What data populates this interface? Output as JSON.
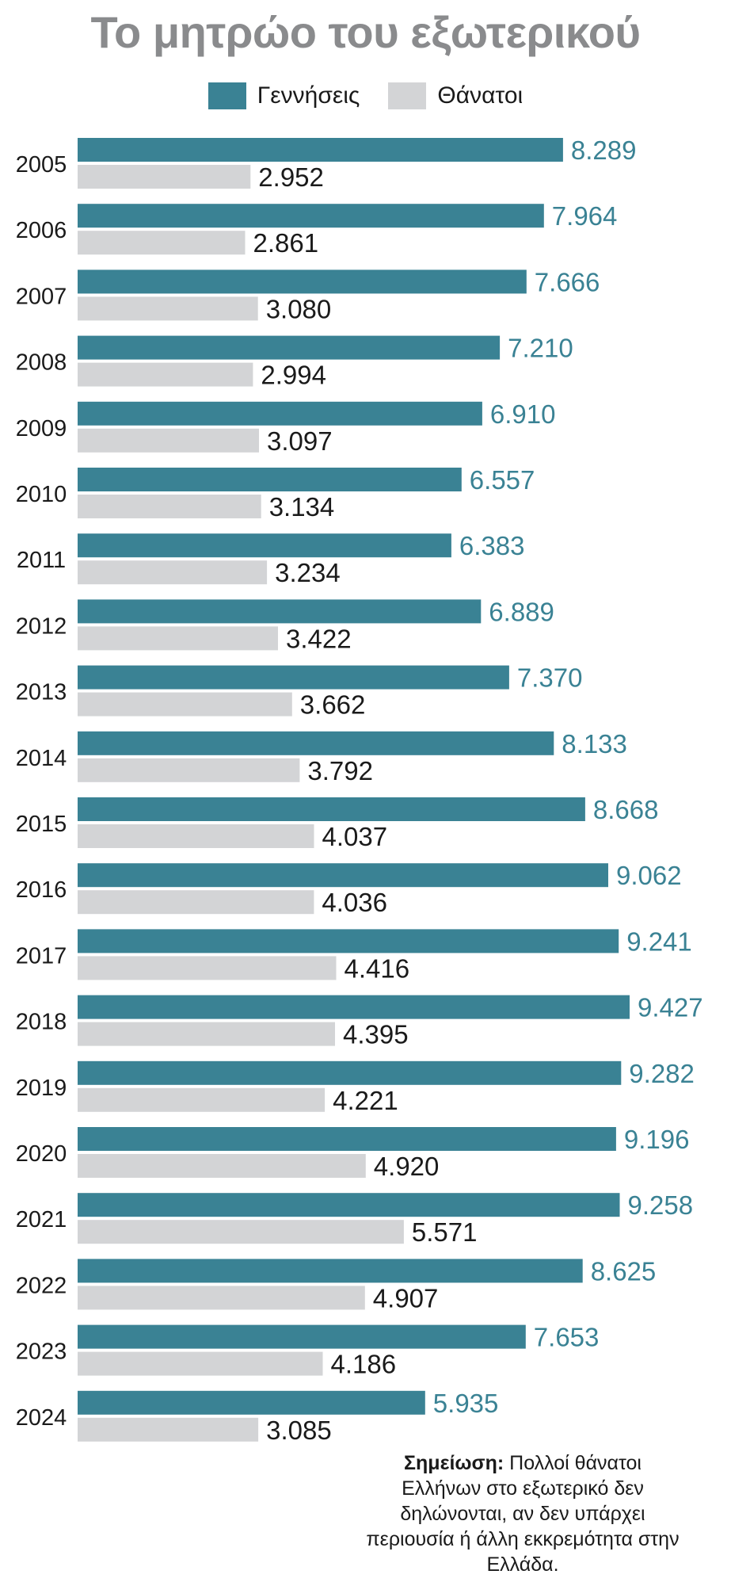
{
  "colors": {
    "births": "#3a8294",
    "deaths": "#d3d4d6",
    "title": "#8a8b8d",
    "text": "#1a1a1a"
  },
  "chart_data": {
    "type": "bar",
    "orientation": "horizontal",
    "title": "Το μητρώο του εξωτερικού",
    "legend": [
      "Γεννήσεις",
      "Θάνατοι"
    ],
    "legend_position": "top-center",
    "categories": [
      "2005",
      "2006",
      "2007",
      "2008",
      "2009",
      "2010",
      "2011",
      "2012",
      "2013",
      "2014",
      "2015",
      "2016",
      "2017",
      "2018",
      "2019",
      "2020",
      "2021",
      "2022",
      "2023",
      "2024"
    ],
    "series": [
      {
        "name": "Γεννήσεις",
        "values": [
          8289,
          7964,
          7666,
          7210,
          6910,
          6557,
          6383,
          6889,
          7370,
          8133,
          8668,
          9062,
          9241,
          9427,
          9282,
          9196,
          9258,
          8625,
          7653,
          5935
        ],
        "labels": [
          "8.289",
          "7.964",
          "7.666",
          "7.210",
          "6.910",
          "6.557",
          "6.383",
          "6.889",
          "7.370",
          "8.133",
          "8.668",
          "9.062",
          "9.241",
          "9.427",
          "9.282",
          "9.196",
          "9.258",
          "8.625",
          "7.653",
          "5.935"
        ]
      },
      {
        "name": "Θάνατοι",
        "values": [
          2952,
          2861,
          3080,
          2994,
          3097,
          3134,
          3234,
          3422,
          3662,
          3792,
          4037,
          4036,
          4416,
          4395,
          4221,
          4920,
          5571,
          4907,
          4186,
          3085
        ],
        "labels": [
          "2.952",
          "2.861",
          "3.080",
          "2.994",
          "3.097",
          "3.134",
          "3.234",
          "3.422",
          "3.662",
          "3.792",
          "4.037",
          "4.036",
          "4.416",
          "4.395",
          "4.221",
          "4.920",
          "5.571",
          "4.907",
          "4.186",
          "3.085"
        ]
      }
    ],
    "xlim": [
      0,
      9427
    ],
    "grid": false
  },
  "note": {
    "label": "Σημείωση:",
    "text": " Πολλοί θάνατοι Ελλήνων στο εξωτερικό δεν δηλώνονται, αν δεν υπάρχει περιουσία ή άλλη εκκρεμότητα στην Ελλάδα."
  }
}
